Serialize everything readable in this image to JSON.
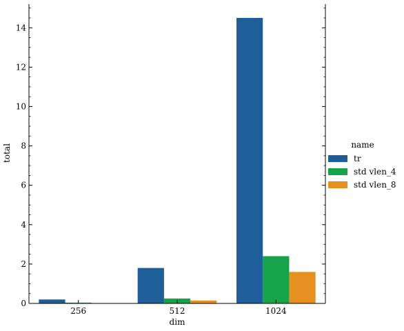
{
  "chart_data": {
    "type": "bar",
    "xlabel": "dim",
    "ylabel": "total",
    "categories": [
      "256",
      "512",
      "1024"
    ],
    "series": [
      {
        "name": "tr",
        "values": [
          0.2,
          1.8,
          14.5
        ],
        "color": "#1f5f99"
      },
      {
        "name": "std_vlen_4",
        "values": [
          0.04,
          0.25,
          2.4
        ],
        "color": "#16a34a"
      },
      {
        "name": "std_vlen_8",
        "values": [
          0.0,
          0.15,
          1.6
        ],
        "color": "#e69020"
      }
    ],
    "ylim": [
      0,
      15.2
    ],
    "yticks": [
      0,
      2,
      4,
      6,
      8,
      10,
      12,
      14
    ],
    "legend": {
      "title": "name",
      "placement": "right",
      "labels": [
        "tr",
        "std vlen_4",
        "std vlen_8"
      ]
    },
    "grid": false
  }
}
